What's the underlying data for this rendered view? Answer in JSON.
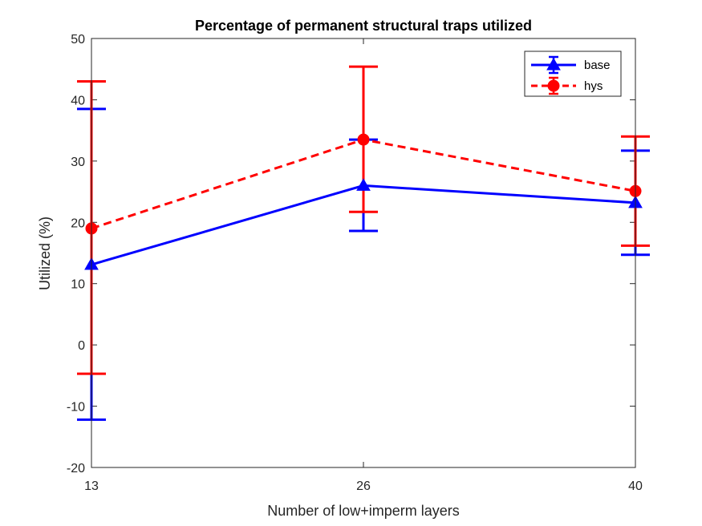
{
  "chart_data": {
    "type": "line",
    "title": "Percentage of permanent structural traps utilized",
    "xlabel": "Number of low+imperm layers",
    "ylabel": "Utilized (%)",
    "categories": [
      "13",
      "26",
      "40"
    ],
    "ylim": [
      -20,
      50
    ],
    "yticks": [
      "-20",
      "-10",
      "0",
      "10",
      "20",
      "30",
      "40",
      "50"
    ],
    "grid": false,
    "legend_position": "top-right",
    "series": [
      {
        "name": "base",
        "values": [
          13.1,
          26.0,
          23.2
        ],
        "err_low": [
          -12.2,
          18.6,
          14.7
        ],
        "err_high": [
          38.5,
          33.5,
          31.7
        ],
        "color": "#0000ff",
        "line_style": "solid",
        "marker": "triangle"
      },
      {
        "name": "hys",
        "values": [
          19.0,
          33.5,
          25.1
        ],
        "err_low": [
          -4.7,
          21.7,
          16.2
        ],
        "err_high": [
          43.0,
          45.4,
          34.0
        ],
        "color": "#ff0000",
        "line_style": "dashed",
        "marker": "circle"
      }
    ]
  }
}
